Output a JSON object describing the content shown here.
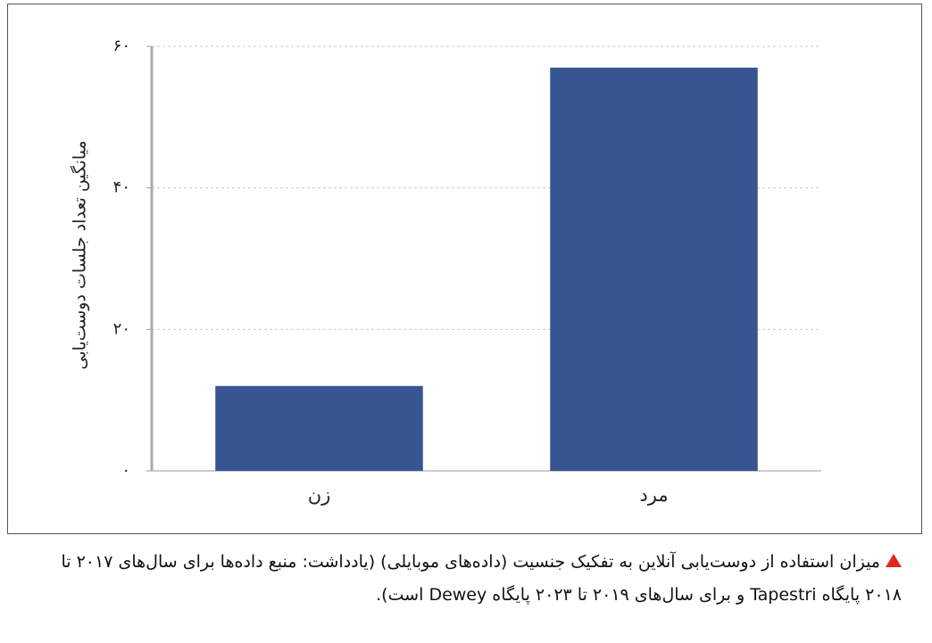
{
  "chart_data": {
    "type": "bar",
    "y_label": "میانگین تعداد جلسات دوست‌یابی",
    "categories": [
      "زن",
      "مرد"
    ],
    "values": [
      12,
      57
    ],
    "color": "#365591",
    "ylim": [
      0,
      60
    ],
    "yticks": [
      {
        "value": 0,
        "label": "۰"
      },
      {
        "value": 20,
        "label": "۲۰"
      },
      {
        "value": 40,
        "label": "۴۰"
      },
      {
        "value": 60,
        "label": "۶۰"
      }
    ],
    "grid": true
  },
  "caption": "میزان استفاده از دوست‌یابی آنلاین به تفکیک جنسیت (داده‌های موبایلی) (یادداشت: منبع داده‌ها برای سال‌های ۲۰۱۷ تا ۲۰۱۸ پایگاه Tapestri و برای سال‌های ۲۰۱۹ تا ۲۰۲۳ پایگاه Dewey است)."
}
